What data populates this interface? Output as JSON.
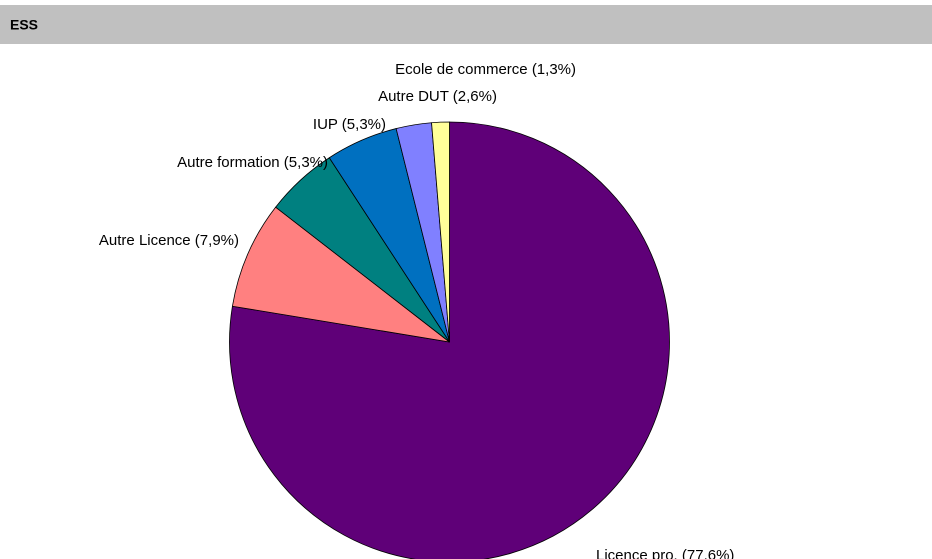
{
  "chart_data": {
    "type": "pie",
    "title": "ESS",
    "values": [
      77.6,
      7.9,
      5.3,
      5.3,
      2.6,
      1.3
    ],
    "value_labels": [
      "Licence pro. (77,6%)",
      "Autre Licence (7,9%)",
      "Autre formation (5,3%)",
      "IUP (5,3%)",
      "Autre DUT (2,6%)",
      "Ecole de commerce (1,3%)"
    ],
    "colors": [
      "#5f0078",
      "#ff8080",
      "#008080",
      "#0070c0",
      "#8080ff",
      "#ffff99"
    ]
  }
}
